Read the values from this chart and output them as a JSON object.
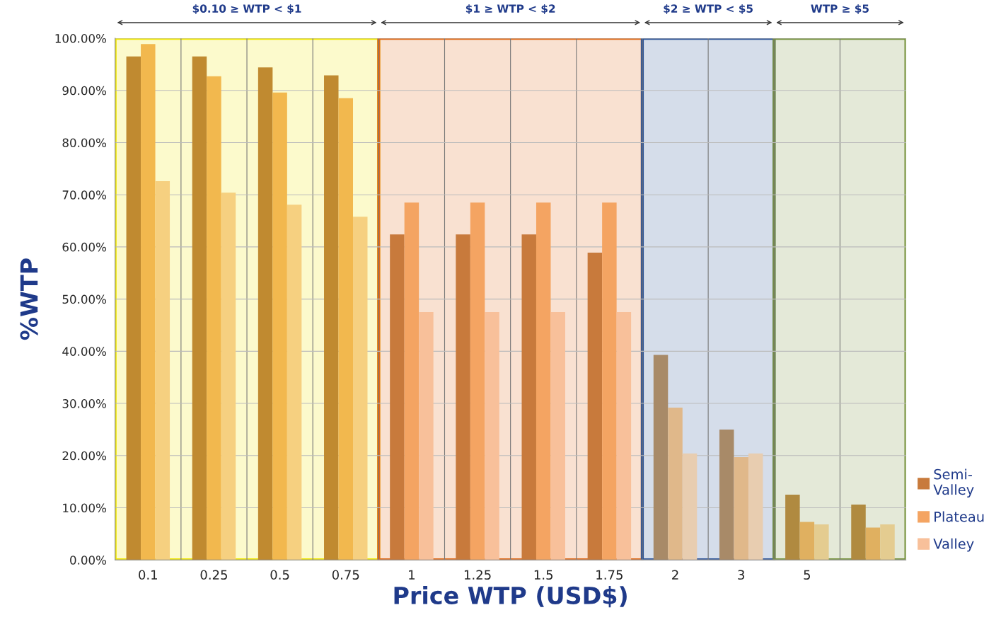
{
  "chart_data": {
    "type": "bar",
    "xlabel": "Price WTP (USD$)",
    "ylabel": "%WTP",
    "categories": [
      "0.1",
      "0.25",
      "0.5",
      "0.75",
      "1",
      "1.25",
      "1.5",
      "1.75",
      "2",
      "3",
      "5",
      null
    ],
    "series": [
      {
        "name": "Semi-\nValley",
        "color": "#c87a3c",
        "values": [
          96.5,
          96.5,
          94.4,
          92.9,
          62.4,
          62.4,
          62.4,
          58.9,
          39.3,
          25.0,
          12.5,
          10.6
        ],
        "colors": [
          "#c08a30",
          "#c08a30",
          "#c08a30",
          "#c08a30",
          "#c87a3c",
          "#c87a3c",
          "#c87a3c",
          "#c87a3c",
          "#a88a68",
          "#a88a68",
          "#b08a40",
          "#b08a40"
        ]
      },
      {
        "name": "Plateau",
        "color": "#f4a462",
        "values": [
          98.9,
          92.7,
          89.6,
          88.5,
          68.5,
          68.5,
          68.5,
          68.5,
          29.2,
          19.7,
          7.3,
          6.2
        ],
        "colors": [
          "#f2b84e",
          "#f2b84e",
          "#f2b84e",
          "#f2b84e",
          "#f4a462",
          "#f4a462",
          "#f4a462",
          "#f4a462",
          "#e0b88a",
          "#e0b88a",
          "#e0b060",
          "#e0b060"
        ]
      },
      {
        "name": "Valley",
        "color": "#f8c09a",
        "values": [
          72.6,
          70.4,
          68.1,
          65.8,
          47.5,
          47.5,
          47.5,
          47.5,
          20.4,
          20.4,
          6.8,
          6.8
        ],
        "colors": [
          "#f6d080",
          "#f6d080",
          "#f6d080",
          "#f6d080",
          "#f8c09a",
          "#f8c09a",
          "#f8c09a",
          "#f8c09a",
          "#e8cdb0",
          "#e8cdb0",
          "#e4cc90",
          "#e4cc90"
        ]
      }
    ],
    "ylim": [
      0,
      100
    ],
    "yticks": [
      {
        "value": 0,
        "label": "0.00%"
      },
      {
        "value": 10,
        "label": "10.00%"
      },
      {
        "value": 20,
        "label": "20.00%"
      },
      {
        "value": 30,
        "label": "30.00%"
      },
      {
        "value": 40,
        "label": "40.00%"
      },
      {
        "value": 50,
        "label": "50.00%"
      },
      {
        "value": 60,
        "label": "60.00%"
      },
      {
        "value": 70,
        "label": "70.00%"
      },
      {
        "value": 80,
        "label": "80.00%"
      },
      {
        "value": 90,
        "label": "90.00%"
      },
      {
        "value": 100,
        "label": "100.00%"
      }
    ],
    "bands": [
      {
        "axis": "x",
        "from": "0.1",
        "to": "0.75",
        "label": "$0.10 ≥ WTP < $1",
        "color": "#f0e800"
      },
      {
        "axis": "x",
        "from": "1",
        "to": "1.75",
        "label": "$1 ≥ WTP < $2",
        "color": "#e06a18"
      },
      {
        "axis": "x",
        "from": "2",
        "to": "3",
        "label": "$2 ≥ WTP < $5",
        "color": "#2f5597"
      }
    ],
    "annotations": [
      "WTP ≥ $5"
    ],
    "grid": true,
    "legend": "right"
  }
}
